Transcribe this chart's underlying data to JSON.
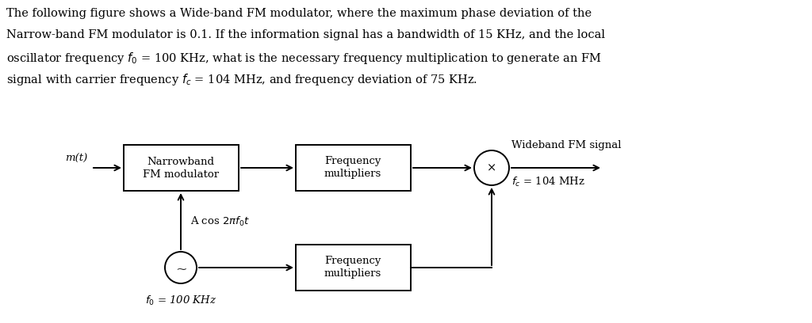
{
  "background_color": "#ffffff",
  "text_color": "#000000",
  "para_lines": [
    "The following figure shows a Wide-band FM modulator, where the maximum phase deviation of the",
    "Narrow-band FM modulator is 0.1. If the information signal has a bandwidth of 15 KHz, and the local",
    "oscillator frequency $f_0$ = 100 KHz, what is the necessary frequency multiplication to generate an FM",
    "signal with carrier frequency $f_c$ = 104 MHz, and frequency deviation of 75 KHz."
  ],
  "box1_line1": "Narrowband",
  "box1_line2": "FM modulator",
  "box2_line1": "Frequency",
  "box2_line2": "multipliers",
  "box3_line1": "Frequency",
  "box3_line2": "multipliers",
  "mixer_label": "×",
  "osc_label": "~",
  "input_label": "m(t)",
  "output_label": "Wideband FM signal",
  "fc_label": "$f_c$ = 104 MHz",
  "fo_label": "$f_0$ = 100 KHz",
  "cos_label": "A cos $2\\pi f_0 t$",
  "font_size_body": 10.5,
  "font_size_diag": 9.5,
  "font_family": "serif",
  "lw": 1.4,
  "arrow_ms": 12
}
